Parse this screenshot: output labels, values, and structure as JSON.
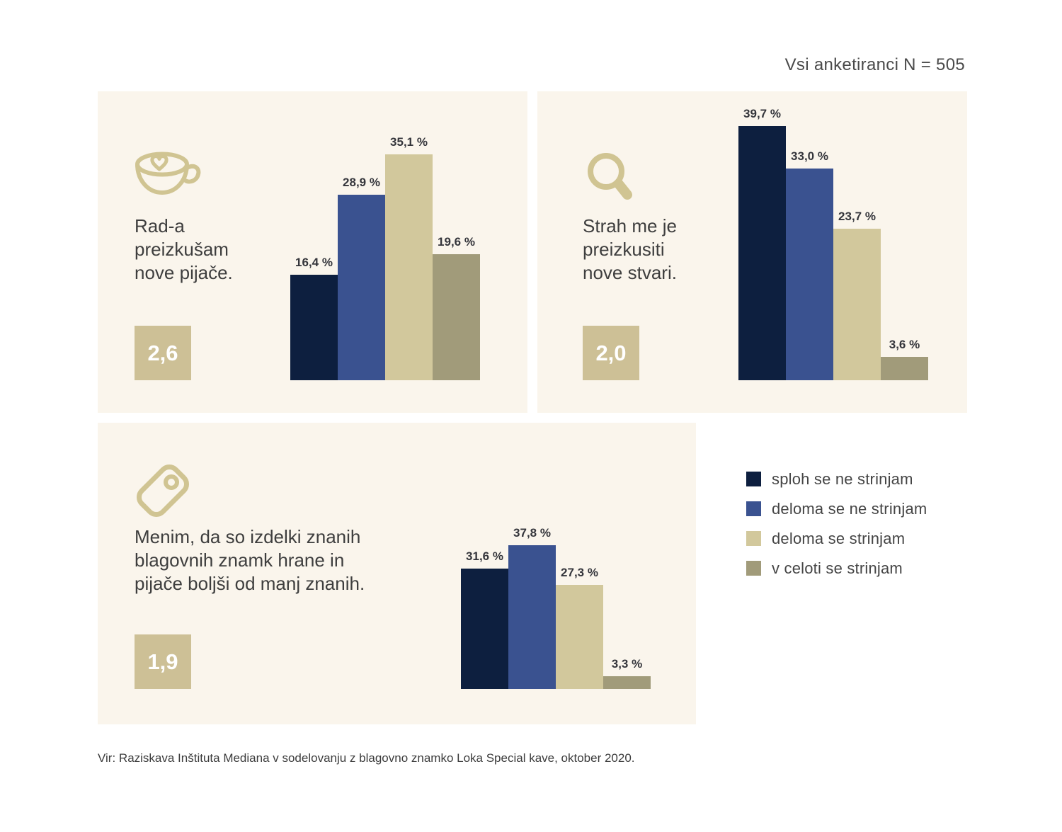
{
  "header": {
    "respondents_note": "Vsi anketiranci N = 505"
  },
  "colors": {
    "page_bg": "#ffffff",
    "panel_bg": "#faf5ec",
    "badge_bg": "#cdc096",
    "icon_tan": "#d0c492",
    "series": [
      "#0d1f3f",
      "#3a5290",
      "#d2c89c",
      "#a19b7a"
    ]
  },
  "legend": {
    "position": "bottom-right",
    "items": [
      {
        "key": "sploh-se-ne-strinjam",
        "label": "sploh se ne strinjam",
        "color": "#0d1f3f"
      },
      {
        "key": "deloma-se-ne-strinjam",
        "label": "deloma se ne strinjam",
        "color": "#3a5290"
      },
      {
        "key": "deloma-se-strinjam",
        "label": "deloma se strinjam",
        "color": "#d2c89c"
      },
      {
        "key": "v-celoti-se-strinjam",
        "label": "v celoti se strinjam",
        "color": "#a19b7a"
      }
    ]
  },
  "panels": [
    {
      "icon": "coffee-cup-icon"
    },
    {
      "icon": "search-icon"
    },
    {
      "icon": "price-tag-icon"
    }
  ],
  "chart_data": [
    {
      "type": "bar",
      "title": "Rad-a preizkušam nove pijače.",
      "title_lines": [
        "Rad-a",
        "preizkušam",
        "nove pijače."
      ],
      "categories": [
        "sploh se ne strinjam",
        "deloma se ne strinjam",
        "deloma se strinjam",
        "v celoti se strinjam"
      ],
      "values": [
        16.4,
        28.9,
        35.1,
        19.6
      ],
      "value_labels": [
        "16,4 %",
        "28,9 %",
        "35,1 %",
        "19,6 %"
      ],
      "mean": 2.6,
      "mean_label": "2,6",
      "value_unit": "%",
      "grid": false,
      "axes_shown": false
    },
    {
      "type": "bar",
      "title": "Strah me je preizkusiti nove stvari.",
      "title_lines": [
        "Strah me je",
        "preizkusiti",
        "nove stvari."
      ],
      "categories": [
        "sploh se ne strinjam",
        "deloma se ne strinjam",
        "deloma se strinjam",
        "v celoti se strinjam"
      ],
      "values": [
        39.7,
        33.0,
        23.7,
        3.6
      ],
      "value_labels": [
        "39,7 %",
        "33,0 %",
        "23,7 %",
        "3,6 %"
      ],
      "mean": 2.0,
      "mean_label": "2,0",
      "value_unit": "%",
      "grid": false,
      "axes_shown": false
    },
    {
      "type": "bar",
      "title": "Menim, da so izdelki znanih blagovnih znamk hrane in pijače boljši od manj znanih.",
      "title_lines": [
        "Menim, da so izdelki znanih",
        "blagovnih znamk hrane in",
        "pijače boljši od manj znanih."
      ],
      "categories": [
        "sploh se ne strinjam",
        "deloma se ne strinjam",
        "deloma se strinjam",
        "v celoti se strinjam"
      ],
      "values": [
        31.6,
        37.8,
        27.3,
        3.3
      ],
      "value_labels": [
        "31,6 %",
        "37,8 %",
        "27,3 %",
        "3,3 %"
      ],
      "mean": 1.9,
      "mean_label": "1,9",
      "value_unit": "%",
      "grid": false,
      "axes_shown": false
    }
  ],
  "footer": {
    "source": "Vir: Raziskava Inštituta Mediana v sodelovanju z blagovno znamko Loka Special kave, oktober 2020."
  }
}
